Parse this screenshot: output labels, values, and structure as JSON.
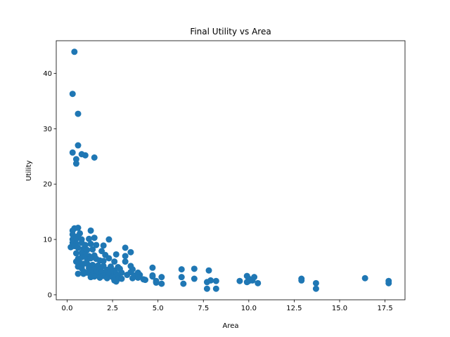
{
  "chart_data": {
    "type": "scatter",
    "title": "Final Utility vs Area",
    "xlabel": "Area",
    "ylabel": "Utility",
    "xlim": [
      -0.6,
      18.6
    ],
    "ylim": [
      -0.9,
      45.9
    ],
    "xticks": [
      0.0,
      2.5,
      5.0,
      7.5,
      10.0,
      12.5,
      15.0,
      17.5
    ],
    "xtick_labels": [
      "0.0",
      "2.5",
      "5.0",
      "7.5",
      "10.0",
      "12.5",
      "15.0",
      "17.5"
    ],
    "yticks": [
      0,
      10,
      20,
      30,
      40
    ],
    "ytick_labels": [
      "0",
      "10",
      "20",
      "30",
      "40"
    ],
    "grid": false,
    "marker_color": "#1f77b4",
    "points": [
      [
        0.4,
        43.9
      ],
      [
        0.3,
        36.3
      ],
      [
        0.6,
        32.7
      ],
      [
        0.3,
        25.7
      ],
      [
        0.6,
        27.0
      ],
      [
        0.8,
        25.4
      ],
      [
        1.0,
        25.2
      ],
      [
        1.5,
        24.8
      ],
      [
        0.5,
        24.5
      ],
      [
        0.5,
        23.7
      ],
      [
        0.4,
        12.0
      ],
      [
        0.6,
        12.1
      ],
      [
        0.3,
        11.6
      ],
      [
        0.7,
        11.1
      ],
      [
        1.3,
        11.6
      ],
      [
        0.3,
        10.9
      ],
      [
        0.6,
        10.6
      ],
      [
        1.5,
        10.3
      ],
      [
        0.3,
        10.0
      ],
      [
        0.5,
        10.1
      ],
      [
        0.8,
        10.0
      ],
      [
        1.2,
        10.1
      ],
      [
        2.3,
        10.0
      ],
      [
        0.3,
        9.4
      ],
      [
        0.5,
        9.2
      ],
      [
        0.8,
        9.4
      ],
      [
        1.0,
        9.0
      ],
      [
        1.3,
        9.2
      ],
      [
        1.6,
        9.0
      ],
      [
        2.0,
        8.9
      ],
      [
        0.2,
        8.6
      ],
      [
        0.4,
        8.8
      ],
      [
        0.6,
        8.5
      ],
      [
        0.9,
        8.3
      ],
      [
        1.1,
        8.1
      ],
      [
        1.4,
        8.2
      ],
      [
        1.9,
        7.9
      ],
      [
        3.2,
        8.5
      ],
      [
        3.5,
        7.7
      ],
      [
        0.5,
        7.5
      ],
      [
        0.8,
        7.6
      ],
      [
        1.0,
        7.3
      ],
      [
        1.2,
        7.0
      ],
      [
        1.5,
        7.1
      ],
      [
        2.1,
        7.2
      ],
      [
        2.7,
        7.3
      ],
      [
        3.2,
        7.0
      ],
      [
        0.6,
        6.5
      ],
      [
        0.8,
        6.8
      ],
      [
        1.1,
        6.4
      ],
      [
        1.3,
        6.6
      ],
      [
        1.6,
        6.5
      ],
      [
        1.8,
        6.2
      ],
      [
        2.0,
        6.1
      ],
      [
        2.3,
        6.6
      ],
      [
        2.6,
        6.0
      ],
      [
        3.2,
        6.0
      ],
      [
        0.5,
        6.0
      ],
      [
        0.7,
        5.8
      ],
      [
        0.9,
        5.6
      ],
      [
        1.1,
        5.6
      ],
      [
        1.4,
        5.4
      ],
      [
        1.7,
        5.3
      ],
      [
        2.0,
        5.2
      ],
      [
        2.4,
        5.1
      ],
      [
        2.8,
        5.0
      ],
      [
        3.5,
        5.2
      ],
      [
        0.6,
        5.1
      ],
      [
        0.8,
        4.8
      ],
      [
        1.2,
        4.8
      ],
      [
        1.5,
        4.6
      ],
      [
        1.8,
        4.6
      ],
      [
        2.2,
        4.5
      ],
      [
        2.6,
        4.4
      ],
      [
        2.9,
        4.7
      ],
      [
        3.6,
        4.6
      ],
      [
        4.7,
        4.9
      ],
      [
        6.3,
        4.6
      ],
      [
        7.0,
        4.7
      ],
      [
        7.8,
        4.4
      ],
      [
        0.9,
        4.2
      ],
      [
        1.1,
        4.0
      ],
      [
        1.3,
        4.1
      ],
      [
        1.6,
        4.0
      ],
      [
        1.9,
        4.2
      ],
      [
        2.1,
        3.9
      ],
      [
        2.4,
        4.2
      ],
      [
        2.7,
        3.8
      ],
      [
        3.0,
        4.0
      ],
      [
        3.5,
        4.1
      ],
      [
        3.9,
        4.0
      ],
      [
        0.6,
        3.8
      ],
      [
        0.9,
        3.8
      ],
      [
        1.4,
        3.6
      ],
      [
        1.7,
        3.5
      ],
      [
        2.0,
        3.4
      ],
      [
        2.3,
        3.6
      ],
      [
        2.5,
        3.3
      ],
      [
        2.8,
        3.5
      ],
      [
        3.3,
        3.6
      ],
      [
        3.7,
        3.5
      ],
      [
        4.0,
        3.6
      ],
      [
        4.7,
        3.5
      ],
      [
        1.3,
        3.2
      ],
      [
        1.5,
        3.3
      ],
      [
        2.2,
        3.0
      ],
      [
        2.5,
        3.2
      ],
      [
        2.8,
        2.9
      ],
      [
        3.9,
        3.1
      ],
      [
        4.2,
        2.8
      ],
      [
        5.2,
        3.2
      ],
      [
        6.3,
        3.2
      ],
      [
        1.8,
        3.1
      ],
      [
        2.6,
        2.6
      ],
      [
        3.6,
        3.0
      ],
      [
        4.3,
        2.7
      ],
      [
        4.9,
        2.5
      ],
      [
        2.7,
        2.4
      ],
      [
        5.2,
        2.0
      ],
      [
        6.4,
        2.0
      ],
      [
        7.0,
        2.9
      ],
      [
        7.7,
        2.3
      ],
      [
        7.9,
        2.6
      ],
      [
        8.2,
        2.5
      ],
      [
        9.5,
        2.5
      ],
      [
        9.9,
        3.4
      ],
      [
        10.0,
        2.5
      ],
      [
        10.3,
        3.2
      ],
      [
        10.0,
        2.9
      ],
      [
        10.5,
        2.1
      ],
      [
        9.9,
        2.3
      ],
      [
        10.2,
        2.6
      ],
      [
        12.9,
        2.9
      ],
      [
        12.9,
        2.6
      ],
      [
        13.7,
        2.1
      ],
      [
        16.4,
        3.0
      ],
      [
        17.7,
        2.5
      ],
      [
        17.7,
        2.1
      ],
      [
        7.7,
        1.1
      ],
      [
        8.2,
        1.1
      ],
      [
        13.7,
        1.1
      ],
      [
        4.9,
        2.2
      ],
      [
        4.7,
        3.3
      ],
      [
        3.0,
        2.9
      ]
    ]
  }
}
